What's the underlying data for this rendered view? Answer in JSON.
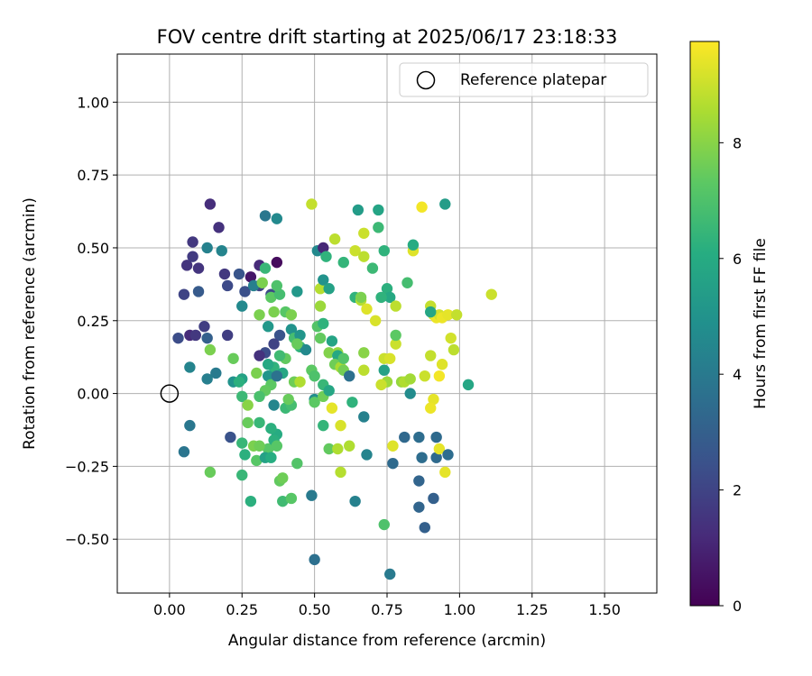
{
  "chart_data": {
    "type": "scatter",
    "title": "FOV centre drift starting at 2025/06/17 23:18:33",
    "xlabel": "Angular distance from reference (arcmin)",
    "ylabel": "Rotation from reference (arcmin)",
    "xlim": [
      -0.18,
      1.68
    ],
    "ylim": [
      -0.685,
      1.165
    ],
    "xticks": [
      "0.00",
      "0.25",
      "0.50",
      "0.75",
      "1.00",
      "1.25",
      "1.50"
    ],
    "xtick_values": [
      0,
      0.25,
      0.5,
      0.75,
      1.0,
      1.25,
      1.5
    ],
    "yticks": [
      "−0.50",
      "−0.25",
      "0.00",
      "0.25",
      "0.50",
      "0.75",
      "1.00"
    ],
    "ytick_values": [
      -0.5,
      -0.25,
      0,
      0.25,
      0.5,
      0.75,
      1.0
    ],
    "grid": true,
    "legend": {
      "position": "upper-right",
      "label": "Reference platepar"
    },
    "reference_point": {
      "x": 0.0,
      "y": 0.0
    },
    "colorbar": {
      "label": "Hours from first FF file",
      "min": 0,
      "max": 9.75,
      "ticks": [
        "0",
        "2",
        "4",
        "6",
        "8"
      ],
      "tick_values": [
        0,
        2,
        4,
        6,
        8
      ],
      "colormap": "viridis"
    },
    "points": [
      [
        0.14,
        0.65,
        1.3
      ],
      [
        0.17,
        0.57,
        1.4
      ],
      [
        0.08,
        0.52,
        1.6
      ],
      [
        0.06,
        0.44,
        1.5
      ],
      [
        0.08,
        0.47,
        1.7
      ],
      [
        0.1,
        0.43,
        1.5
      ],
      [
        0.05,
        0.34,
        2.0
      ],
      [
        0.1,
        0.35,
        2.8
      ],
      [
        0.07,
        0.2,
        1.2
      ],
      [
        0.09,
        0.2,
        1.6
      ],
      [
        0.12,
        0.23,
        1.8
      ],
      [
        0.03,
        0.19,
        2.3
      ],
      [
        0.13,
        0.19,
        3.0
      ],
      [
        0.19,
        0.41,
        1.6
      ],
      [
        0.2,
        0.37,
        2.2
      ],
      [
        0.24,
        0.41,
        2.6
      ],
      [
        0.26,
        0.35,
        2.4
      ],
      [
        0.28,
        0.4,
        0.6
      ],
      [
        0.31,
        0.44,
        1.2
      ],
      [
        0.37,
        0.45,
        0.3
      ],
      [
        0.31,
        0.37,
        2.0
      ],
      [
        0.29,
        0.37,
        4.2
      ],
      [
        0.35,
        0.34,
        2.2
      ],
      [
        0.33,
        0.61,
        3.9
      ],
      [
        0.37,
        0.6,
        4.6
      ],
      [
        0.13,
        0.5,
        4.3
      ],
      [
        0.18,
        0.49,
        4.4
      ],
      [
        0.25,
        0.3,
        4.6
      ],
      [
        0.34,
        0.23,
        5.2
      ],
      [
        0.38,
        0.2,
        2.5
      ],
      [
        0.36,
        0.17,
        2.0
      ],
      [
        0.33,
        0.14,
        2.3
      ],
      [
        0.31,
        0.13,
        1.4
      ],
      [
        0.2,
        0.2,
        1.8
      ],
      [
        0.14,
        0.15,
        7.8
      ],
      [
        0.16,
        0.07,
        4.0
      ],
      [
        0.13,
        0.05,
        4.2
      ],
      [
        0.07,
        0.09,
        4.4
      ],
      [
        0.07,
        -0.11,
        3.9
      ],
      [
        0.05,
        -0.2,
        3.8
      ],
      [
        0.21,
        -0.15,
        2.5
      ],
      [
        0.14,
        -0.27,
        7.5
      ],
      [
        0.22,
        0.12,
        7.5
      ],
      [
        0.22,
        0.04,
        5.0
      ],
      [
        0.25,
        0.05,
        5.6
      ],
      [
        0.24,
        0.04,
        6.2
      ],
      [
        0.25,
        -0.01,
        6.6
      ],
      [
        0.27,
        -0.04,
        8.0
      ],
      [
        0.27,
        -0.1,
        7.5
      ],
      [
        0.25,
        -0.17,
        6.5
      ],
      [
        0.26,
        -0.21,
        6.2
      ],
      [
        0.25,
        -0.28,
        6.5
      ],
      [
        0.28,
        -0.37,
        6.2
      ],
      [
        0.29,
        -0.18,
        7.8
      ],
      [
        0.3,
        -0.23,
        7.2
      ],
      [
        0.3,
        0.07,
        7.8
      ],
      [
        0.31,
        0.27,
        7.8
      ],
      [
        0.32,
        0.38,
        7.8
      ],
      [
        0.33,
        0.43,
        6.5
      ],
      [
        0.35,
        0.33,
        7.3
      ],
      [
        0.36,
        0.28,
        7.8
      ],
      [
        0.38,
        0.34,
        6.8
      ],
      [
        0.37,
        0.37,
        7.0
      ],
      [
        0.4,
        0.28,
        7.2
      ],
      [
        0.42,
        0.27,
        7.8
      ],
      [
        0.42,
        0.22,
        5.0
      ],
      [
        0.44,
        0.35,
        5.2
      ],
      [
        0.43,
        0.19,
        6.8
      ],
      [
        0.45,
        0.16,
        6.3
      ],
      [
        0.45,
        0.2,
        5.1
      ],
      [
        0.47,
        0.15,
        4.6
      ],
      [
        0.44,
        0.17,
        7.5
      ],
      [
        0.4,
        0.12,
        7.4
      ],
      [
        0.38,
        0.13,
        6.7
      ],
      [
        0.36,
        0.09,
        6.3
      ],
      [
        0.34,
        0.06,
        5.1
      ],
      [
        0.34,
        0.1,
        5.9
      ],
      [
        0.35,
        0.03,
        7.3
      ],
      [
        0.39,
        0.07,
        5.8
      ],
      [
        0.37,
        0.06,
        3.7
      ],
      [
        0.33,
        0.01,
        7.4
      ],
      [
        0.31,
        -0.01,
        6.9
      ],
      [
        0.36,
        -0.04,
        4.5
      ],
      [
        0.4,
        -0.05,
        6.6
      ],
      [
        0.42,
        -0.04,
        6.8
      ],
      [
        0.41,
        -0.02,
        7.5
      ],
      [
        0.37,
        -0.14,
        6.0
      ],
      [
        0.35,
        -0.12,
        6.2
      ],
      [
        0.31,
        -0.1,
        6.5
      ],
      [
        0.34,
        -0.19,
        7.2
      ],
      [
        0.36,
        -0.16,
        6.2
      ],
      [
        0.37,
        -0.18,
        7.2
      ],
      [
        0.31,
        -0.18,
        7.6
      ],
      [
        0.33,
        -0.22,
        5.6
      ],
      [
        0.35,
        -0.22,
        6.1
      ],
      [
        0.38,
        -0.3,
        7.4
      ],
      [
        0.39,
        -0.37,
        6.7
      ],
      [
        0.42,
        -0.36,
        7.2
      ],
      [
        0.39,
        -0.29,
        7.6
      ],
      [
        0.44,
        -0.24,
        7.1
      ],
      [
        0.43,
        0.04,
        7.6
      ],
      [
        0.45,
        0.04,
        8.6
      ],
      [
        0.49,
        0.08,
        7.3
      ],
      [
        0.5,
        0.06,
        7.0
      ],
      [
        0.5,
        -0.02,
        4.8
      ],
      [
        0.5,
        -0.03,
        7.3
      ],
      [
        0.53,
        -0.01,
        7.6
      ],
      [
        0.53,
        0.03,
        6.5
      ],
      [
        0.55,
        0.01,
        5.8
      ],
      [
        0.53,
        -0.11,
        6.4
      ],
      [
        0.49,
        -0.35,
        4.0
      ],
      [
        0.5,
        -0.57,
        3.6
      ],
      [
        0.49,
        0.65,
        8.9
      ],
      [
        0.51,
        0.49,
        4.6
      ],
      [
        0.53,
        0.5,
        1.1
      ],
      [
        0.52,
        0.36,
        8.7
      ],
      [
        0.53,
        0.39,
        5.0
      ],
      [
        0.55,
        0.36,
        5.6
      ],
      [
        0.57,
        0.53,
        8.8
      ],
      [
        0.54,
        0.47,
        6.3
      ],
      [
        0.52,
        0.3,
        8.3
      ],
      [
        0.51,
        0.23,
        7.1
      ],
      [
        0.53,
        0.24,
        6.3
      ],
      [
        0.52,
        0.19,
        7.4
      ],
      [
        0.56,
        0.18,
        5.7
      ],
      [
        0.55,
        0.14,
        7.9
      ],
      [
        0.58,
        0.14,
        8.2
      ],
      [
        0.58,
        0.13,
        5.9
      ],
      [
        0.57,
        0.1,
        7.6
      ],
      [
        0.59,
        0.09,
        8.5
      ],
      [
        0.6,
        0.12,
        7.1
      ],
      [
        0.6,
        0.08,
        7.7
      ],
      [
        0.62,
        0.06,
        3.6
      ],
      [
        0.6,
        0.45,
        6.4
      ],
      [
        0.64,
        0.33,
        6.3
      ],
      [
        0.66,
        0.32,
        8.7
      ],
      [
        0.68,
        0.29,
        9.3
      ],
      [
        0.66,
        0.33,
        7.8
      ],
      [
        0.64,
        0.49,
        9.0
      ],
      [
        0.65,
        0.63,
        5.4
      ],
      [
        0.67,
        0.47,
        8.8
      ],
      [
        0.67,
        0.55,
        9.0
      ],
      [
        0.7,
        0.43,
        6.6
      ],
      [
        0.72,
        0.57,
        6.6
      ],
      [
        0.72,
        0.63,
        5.7
      ],
      [
        0.74,
        0.49,
        6.3
      ],
      [
        0.75,
        0.36,
        6.2
      ],
      [
        0.76,
        0.33,
        5.9
      ],
      [
        0.73,
        0.33,
        6.3
      ],
      [
        0.78,
        0.3,
        8.8
      ],
      [
        0.71,
        0.25,
        9.2
      ],
      [
        0.67,
        0.14,
        8.0
      ],
      [
        0.67,
        0.08,
        8.8
      ],
      [
        0.74,
        0.12,
        9.0
      ],
      [
        0.74,
        0.08,
        5.6
      ],
      [
        0.75,
        0.04,
        8.3
      ],
      [
        0.73,
        0.03,
        9.0
      ],
      [
        0.76,
        0.12,
        9.2
      ],
      [
        0.78,
        0.17,
        9.0
      ],
      [
        0.78,
        0.2,
        7.3
      ],
      [
        0.8,
        0.04,
        8.2
      ],
      [
        0.81,
        0.04,
        8.6
      ],
      [
        0.83,
        0.05,
        8.4
      ],
      [
        0.83,
        0,
        4.7
      ],
      [
        0.84,
        0.49,
        9.3
      ],
      [
        0.84,
        0.51,
        6.0
      ],
      [
        0.82,
        0.38,
        6.8
      ],
      [
        0.87,
        0.64,
        9.6
      ],
      [
        0.95,
        0.65,
        5.4
      ],
      [
        0.9,
        0.3,
        8.9
      ],
      [
        0.91,
        0.27,
        9.2
      ],
      [
        0.92,
        0.26,
        9.5
      ],
      [
        0.93,
        0.27,
        9.1
      ],
      [
        0.94,
        0.26,
        9.5
      ],
      [
        0.96,
        0.27,
        9.4
      ],
      [
        0.99,
        0.27,
        8.9
      ],
      [
        0.9,
        0.28,
        5.8
      ],
      [
        0.97,
        0.19,
        9.1
      ],
      [
        0.98,
        0.15,
        8.8
      ],
      [
        0.9,
        0.13,
        8.9
      ],
      [
        0.94,
        0.1,
        9.3
      ],
      [
        0.93,
        0.06,
        9.6
      ],
      [
        0.88,
        0.06,
        9.0
      ],
      [
        0.91,
        -0.02,
        9.4
      ],
      [
        0.9,
        -0.05,
        9.5
      ],
      [
        1.03,
        0.03,
        5.8
      ],
      [
        1.11,
        0.34,
        9.0
      ],
      [
        0.56,
        -0.05,
        9.4
      ],
      [
        0.59,
        -0.11,
        9.2
      ],
      [
        0.55,
        -0.19,
        7.4
      ],
      [
        0.58,
        -0.19,
        8.6
      ],
      [
        0.59,
        -0.27,
        8.7
      ],
      [
        0.62,
        -0.18,
        8.6
      ],
      [
        0.63,
        -0.03,
        6.3
      ],
      [
        0.67,
        -0.08,
        4.3
      ],
      [
        0.68,
        -0.21,
        4.4
      ],
      [
        0.64,
        -0.37,
        4.3
      ],
      [
        0.77,
        -0.18,
        9.3
      ],
      [
        0.77,
        -0.24,
        3.4
      ],
      [
        0.81,
        -0.15,
        3.3
      ],
      [
        0.86,
        -0.15,
        3.5
      ],
      [
        0.87,
        -0.22,
        3.5
      ],
      [
        0.86,
        -0.3,
        3.2
      ],
      [
        0.86,
        -0.39,
        3.2
      ],
      [
        0.88,
        -0.46,
        3.0
      ],
      [
        0.92,
        -0.15,
        3.4
      ],
      [
        0.92,
        -0.22,
        3.4
      ],
      [
        0.91,
        -0.36,
        3.0
      ],
      [
        0.93,
        -0.19,
        9.4
      ],
      [
        0.95,
        -0.27,
        9.4
      ],
      [
        0.96,
        -0.21,
        3.5
      ],
      [
        0.74,
        -0.45,
        7.0
      ],
      [
        0.76,
        -0.62,
        4.0
      ]
    ]
  }
}
